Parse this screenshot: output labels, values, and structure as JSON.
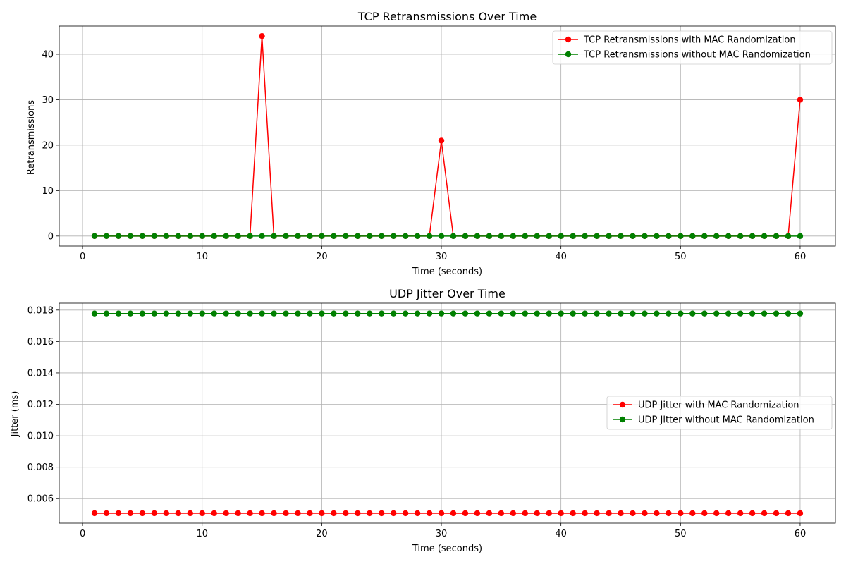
{
  "chart_data": [
    {
      "type": "line",
      "title": "TCP Retransmissions Over Time",
      "xlabel": "Time (seconds)",
      "ylabel": "Retransmissions",
      "xlim": [
        -1.95,
        62.95
      ],
      "ylim": [
        -2.2,
        46.2
      ],
      "xticks": [
        0,
        10,
        20,
        30,
        40,
        50,
        60
      ],
      "yticks": [
        0,
        10,
        20,
        30,
        40
      ],
      "grid": true,
      "legend_loc": "top-right",
      "x": [
        1,
        2,
        3,
        4,
        5,
        6,
        7,
        8,
        9,
        10,
        11,
        12,
        13,
        14,
        15,
        16,
        17,
        18,
        19,
        20,
        21,
        22,
        23,
        24,
        25,
        26,
        27,
        28,
        29,
        30,
        31,
        32,
        33,
        34,
        35,
        36,
        37,
        38,
        39,
        40,
        41,
        42,
        43,
        44,
        45,
        46,
        47,
        48,
        49,
        50,
        51,
        52,
        53,
        54,
        55,
        56,
        57,
        58,
        59,
        60
      ],
      "series": [
        {
          "name": "TCP Retransmissions with MAC Randomization",
          "color": "#ff0000",
          "values": [
            0,
            0,
            0,
            0,
            0,
            0,
            0,
            0,
            0,
            0,
            0,
            0,
            0,
            0,
            44,
            0,
            0,
            0,
            0,
            0,
            0,
            0,
            0,
            0,
            0,
            0,
            0,
            0,
            0,
            21,
            0,
            0,
            0,
            0,
            0,
            0,
            0,
            0,
            0,
            0,
            0,
            0,
            0,
            0,
            0,
            0,
            0,
            0,
            0,
            0,
            0,
            0,
            0,
            0,
            0,
            0,
            0,
            0,
            0,
            30
          ]
        },
        {
          "name": "TCP Retransmissions without MAC Randomization",
          "color": "#008000",
          "values": [
            0,
            0,
            0,
            0,
            0,
            0,
            0,
            0,
            0,
            0,
            0,
            0,
            0,
            0,
            0,
            0,
            0,
            0,
            0,
            0,
            0,
            0,
            0,
            0,
            0,
            0,
            0,
            0,
            0,
            0,
            0,
            0,
            0,
            0,
            0,
            0,
            0,
            0,
            0,
            0,
            0,
            0,
            0,
            0,
            0,
            0,
            0,
            0,
            0,
            0,
            0,
            0,
            0,
            0,
            0,
            0,
            0,
            0,
            0,
            0
          ]
        }
      ]
    },
    {
      "type": "line",
      "title": "UDP Jitter Over Time",
      "xlabel": "Time (seconds)",
      "ylabel": "Jitter (ms)",
      "xlim": [
        -1.95,
        62.95
      ],
      "ylim": [
        0.00444,
        0.01844
      ],
      "xticks": [
        0,
        10,
        20,
        30,
        40,
        50,
        60
      ],
      "yticks": [
        0.006,
        0.008,
        0.01,
        0.012,
        0.014,
        0.016,
        0.018
      ],
      "ytick_labels": [
        "0.006",
        "0.008",
        "0.010",
        "0.012",
        "0.014",
        "0.016",
        "0.018"
      ],
      "grid": true,
      "legend_loc": "center-right",
      "x": [
        1,
        2,
        3,
        4,
        5,
        6,
        7,
        8,
        9,
        10,
        11,
        12,
        13,
        14,
        15,
        16,
        17,
        18,
        19,
        20,
        21,
        22,
        23,
        24,
        25,
        26,
        27,
        28,
        29,
        30,
        31,
        32,
        33,
        34,
        35,
        36,
        37,
        38,
        39,
        40,
        41,
        42,
        43,
        44,
        45,
        46,
        47,
        48,
        49,
        50,
        51,
        52,
        53,
        54,
        55,
        56,
        57,
        58,
        59,
        60
      ],
      "series": [
        {
          "name": "UDP Jitter with MAC Randomization",
          "color": "#ff0000",
          "values": [
            0.00507,
            0.00507,
            0.00507,
            0.00507,
            0.00507,
            0.00507,
            0.00507,
            0.00507,
            0.00507,
            0.00507,
            0.00507,
            0.00507,
            0.00507,
            0.00507,
            0.00507,
            0.00507,
            0.00507,
            0.00507,
            0.00507,
            0.00507,
            0.00507,
            0.00507,
            0.00507,
            0.00507,
            0.00507,
            0.00507,
            0.00507,
            0.00507,
            0.00507,
            0.00507,
            0.00507,
            0.00507,
            0.00507,
            0.00507,
            0.00507,
            0.00507,
            0.00507,
            0.00507,
            0.00507,
            0.00507,
            0.00507,
            0.00507,
            0.00507,
            0.00507,
            0.00507,
            0.00507,
            0.00507,
            0.00507,
            0.00507,
            0.00507,
            0.00507,
            0.00507,
            0.00507,
            0.00507,
            0.00507,
            0.00507,
            0.00507,
            0.00507,
            0.00507,
            0.00507
          ]
        },
        {
          "name": "UDP Jitter without MAC Randomization",
          "color": "#008000",
          "values": [
            0.01778,
            0.01778,
            0.01778,
            0.01778,
            0.01778,
            0.01778,
            0.01778,
            0.01778,
            0.01778,
            0.01778,
            0.01778,
            0.01778,
            0.01778,
            0.01778,
            0.01778,
            0.01778,
            0.01778,
            0.01778,
            0.01778,
            0.01778,
            0.01778,
            0.01778,
            0.01778,
            0.01778,
            0.01778,
            0.01778,
            0.01778,
            0.01778,
            0.01778,
            0.01778,
            0.01778,
            0.01778,
            0.01778,
            0.01778,
            0.01778,
            0.01778,
            0.01778,
            0.01778,
            0.01778,
            0.01778,
            0.01778,
            0.01778,
            0.01778,
            0.01778,
            0.01778,
            0.01778,
            0.01778,
            0.01778,
            0.01778,
            0.01778,
            0.01778,
            0.01778,
            0.01778,
            0.01778,
            0.01778,
            0.01778,
            0.01778,
            0.01778,
            0.01778,
            0.01778
          ]
        }
      ]
    }
  ]
}
